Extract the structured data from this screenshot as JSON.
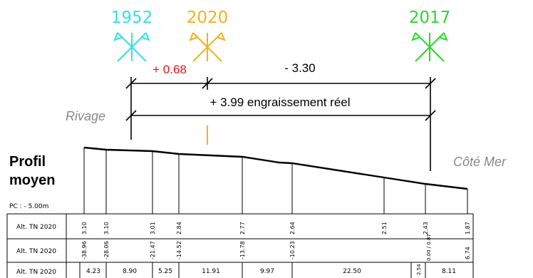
{
  "markers": [
    {
      "year": "1952",
      "color": "#33e0ee"
    },
    {
      "year": "2020",
      "color": "#f2b21f"
    },
    {
      "year": "2017",
      "color": "#2bd92b"
    }
  ],
  "dimensions": {
    "diff_1952_2020": "+ 0.68",
    "diff_2020_2017": "- 3.30",
    "total": "+ 3.99 engraissement réel",
    "accent_color": "#e8141b"
  },
  "labels": {
    "rivage": "Rivage",
    "cote_mer": "Côté Mer",
    "title_line1": "Profil",
    "title_line2": "moyen",
    "pc": "PC : - 5.00m"
  },
  "table": {
    "row_labels": [
      "Alt. TN 2020",
      "Alt. TN 2020",
      "Alt. TN 2020"
    ],
    "altitudes": [
      "3.10",
      "3.10",
      "3.01",
      "2.84",
      "2.77",
      "2.64",
      "2.51",
      "2.43",
      "1.87"
    ],
    "distances": [
      "-38.96",
      "-28.06",
      "-21.47",
      "-14.52",
      "-13.78",
      "-10.23",
      "0.00 / 0.87",
      "6.74"
    ],
    "partials": [
      "4.23",
      "8.90",
      "5.25",
      "11.91",
      "9.97",
      "22.50",
      "2.54",
      "8.11"
    ]
  }
}
